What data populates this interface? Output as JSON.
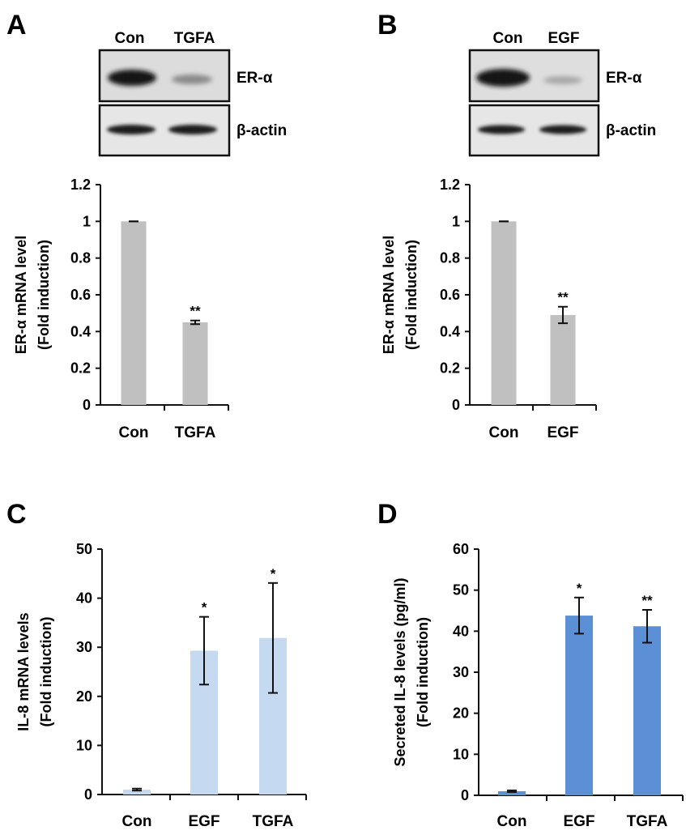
{
  "panels": {
    "A": {
      "letter": "A",
      "blot": {
        "columns": [
          "Con",
          "TGFA"
        ],
        "rows": [
          "ER-α",
          "β-actin"
        ]
      }
    },
    "B": {
      "letter": "B",
      "blot": {
        "columns": [
          "Con",
          "EGF"
        ],
        "rows": [
          "ER-α",
          "β-actin"
        ]
      }
    },
    "C": {
      "letter": "C"
    },
    "D": {
      "letter": "D"
    }
  },
  "chart_data": [
    {
      "panel": "A",
      "type": "bar",
      "categories": [
        "Con",
        "TGFA"
      ],
      "values": [
        1.0,
        0.45
      ],
      "errors": [
        0.0,
        0.01
      ],
      "significance": [
        "",
        "**"
      ],
      "ylabel_lines": [
        "ER-α mRNA level",
        "(Fold induction)"
      ],
      "ylim": [
        0,
        1.2
      ],
      "yticks": [
        "0",
        "0.2",
        "0.4",
        "0.6",
        "0.8",
        "1",
        "1.2"
      ],
      "bar_color": "#c0c0c0"
    },
    {
      "panel": "B",
      "type": "bar",
      "categories": [
        "Con",
        "EGF"
      ],
      "values": [
        1.0,
        0.49
      ],
      "errors": [
        0.0,
        0.045
      ],
      "significance": [
        "",
        "**"
      ],
      "ylabel_lines": [
        "ER-α mRNA level",
        "(Fold induction)"
      ],
      "ylim": [
        0,
        1.2
      ],
      "yticks": [
        "0",
        "0.2",
        "0.4",
        "0.6",
        "0.8",
        "1",
        "1.2"
      ],
      "bar_color": "#c0c0c0"
    },
    {
      "panel": "C",
      "type": "bar",
      "categories": [
        "Con",
        "EGF",
        "TGFA"
      ],
      "values": [
        1.0,
        29.3,
        31.9
      ],
      "errors": [
        0.2,
        6.9,
        11.2
      ],
      "significance": [
        "",
        "*",
        "*"
      ],
      "ylabel_lines": [
        "IL-8 mRNA levels",
        "(Fold induction)"
      ],
      "ylim": [
        0,
        50
      ],
      "yticks": [
        "0",
        "10",
        "20",
        "30",
        "40",
        "50"
      ],
      "bar_color": "#c5d9f0"
    },
    {
      "panel": "D",
      "type": "bar",
      "categories": [
        "Con",
        "EGF",
        "TGFA"
      ],
      "values": [
        1.0,
        43.8,
        41.2
      ],
      "errors": [
        0.2,
        4.4,
        4.0
      ],
      "significance": [
        "",
        "*",
        "**"
      ],
      "ylabel_lines": [
        "Secreted IL-8 levels (pg/ml)",
        "(Fold induction)"
      ],
      "ylim": [
        0,
        60
      ],
      "yticks": [
        "0",
        "10",
        "20",
        "30",
        "40",
        "50",
        "60"
      ],
      "bar_color": "#5b8fd6"
    }
  ]
}
